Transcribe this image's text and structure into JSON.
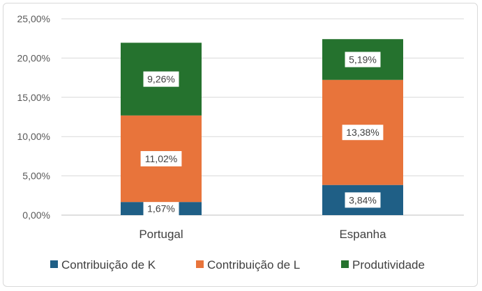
{
  "chart_data": {
    "type": "bar",
    "stacked": true,
    "categories": [
      "Portugal",
      "Espanha"
    ],
    "series": [
      {
        "name": "Contribuição de K",
        "values": [
          1.67,
          3.84
        ],
        "labels": [
          "1,67%",
          "3,84%"
        ],
        "color": "#1f5f86"
      },
      {
        "name": "Contribuição de L",
        "values": [
          11.02,
          13.38
        ],
        "labels": [
          "11,02%",
          "13,38%"
        ],
        "color": "#e8743b"
      },
      {
        "name": "Produtividade",
        "values": [
          9.26,
          5.19
        ],
        "labels": [
          "9,26%",
          "5,19%"
        ],
        "color": "#25722e"
      }
    ],
    "ylim": [
      0,
      25
    ],
    "yticks": [
      0,
      5,
      10,
      15,
      20,
      25
    ],
    "ytick_labels": [
      "0,00%",
      "5,00%",
      "10,00%",
      "15,00%",
      "20,00%",
      "25,00%"
    ],
    "grid": true,
    "legend_position": "bottom",
    "title": "",
    "xlabel": "",
    "ylabel": ""
  }
}
